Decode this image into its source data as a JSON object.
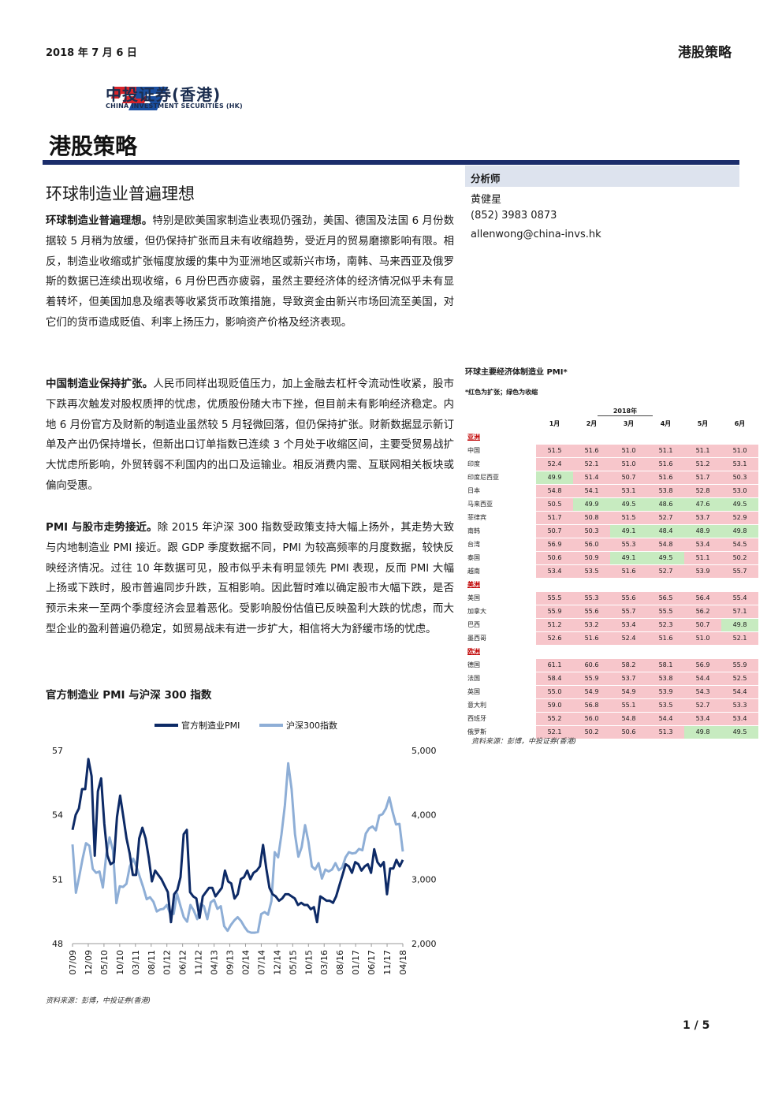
{
  "header": {
    "date": "2018 年 7 月 6 日",
    "section": "港股策略"
  },
  "logo": {
    "cn": "中投证券(香港)",
    "en": "CHINA INVESTMENT SECURITIES (HK)"
  },
  "page_title": "港股策略",
  "headline": "环球制造业普遍理想",
  "paragraphs": [
    {
      "lead": "环球制造业普遍理想。",
      "text": "特别是欧美国家制造业表现仍强劲，美国、德国及法国 6 月份数据较 5 月稍为放缓，但仍保持扩张而且未有收缩趋势，受近月的贸易磨擦影响有限。相反，制造业收缩或扩张幅度放缓的集中为亚洲地区或新兴市场，南韩、马来西亚及俄罗斯的数据已连续出现收缩，6 月份巴西亦疲弱，虽然主要经济体的经济情况似乎未有显着转坏，但美国加息及缩表等收紧货币政策措施，导致资金由新兴市场回流至美国，对它们的货币造成贬值、利率上扬压力，影响资产价格及经济表现。"
    },
    {
      "lead": "中国制造业保持扩张。",
      "text": "人民币同样出现贬值压力，加上金融去杠杆令流动性收紧，股市下跌再次触发对股权质押的忧虑，优质股份随大市下挫，但目前未有影响经济稳定。内地 6 月份官方及财新的制造业虽然较 5 月轻微回落，但仍保持扩张。财新数据显示新订单及产出仍保持增长，但新出口订单指数已连续 3 个月处于收缩区间，主要受贸易战扩大忧虑所影响，外贸转弱不利国内的出口及运输业。相反消费内需、互联网相关板块或偏向受惠。"
    },
    {
      "lead": "PMI 与股市走势接近。",
      "text": "除 2015 年沪深 300 指数受政策支持大幅上扬外，其走势大致与内地制造业 PMI 接近。跟 GDP 季度数据不同，PMI 为较高频率的月度数据，较快反映经济情况。过往 10 年数据可见，股市似乎未有明显领先 PMI 表现，反而 PMI 大幅上扬或下跌时，股市普遍同步升跌，互相影响。因此暂时难以确定股市大幅下跌，是否预示未来一至两个季度经济会显着恶化。受影响股份估值已反映盈利大跌的忧虑，而大型企业的盈利普遍仍稳定，如贸易战未有进一步扩大，相信将大为舒缓市场的忧虑。"
    }
  ],
  "analyst": {
    "label": "分析师",
    "name": "黄健星",
    "phone": "(852) 3983 0873",
    "email": "allenwong@china-invs.hk"
  },
  "chart_data": {
    "type": "line",
    "title": "官方制造业 PMI 与沪深 300 指数",
    "source": "资料来源：彭博，中投证券(香港)",
    "x_ticks": [
      "07/09",
      "12/09",
      "05/10",
      "10/10",
      "03/11",
      "08/11",
      "01/12",
      "06/12",
      "11/12",
      "04/13",
      "09/13",
      "02/14",
      "07/14",
      "12/14",
      "05/15",
      "10/15",
      "03/16",
      "08/16",
      "01/17",
      "06/17",
      "11/17",
      "04/18"
    ],
    "y_left": {
      "ticks": [
        "57",
        "54",
        "51",
        "48"
      ],
      "range": [
        48,
        57
      ]
    },
    "y_right": {
      "ticks": [
        "5,000",
        "4,000",
        "3,000",
        "2,000"
      ],
      "range": [
        2000,
        5000
      ]
    },
    "series": [
      {
        "name": "官方制造业PMI",
        "axis": "left",
        "color": "#0d2a66",
        "values": [
          53.3,
          54.0,
          54.3,
          55.2,
          55.2,
          56.6,
          55.8,
          52.1,
          55.1,
          55.7,
          53.6,
          52.1,
          51.7,
          51.8,
          53.9,
          54.9,
          53.9,
          52.9,
          52.2,
          51.2,
          51.2,
          52.9,
          53.4,
          52.9,
          52.0,
          50.9,
          51.4,
          51.2,
          51.0,
          50.7,
          50.4,
          49.0,
          50.3,
          50.5,
          51.1,
          53.1,
          53.3,
          50.4,
          50.2,
          50.1,
          49.2,
          50.2,
          50.4,
          50.6,
          50.6,
          50.2,
          50.4,
          50.6,
          51.4,
          50.9,
          50.8,
          50.1,
          50.3,
          51.0,
          51.1,
          51.4,
          51.0,
          51.3,
          51.4,
          51.6,
          52.6,
          51.5,
          50.6,
          50.3,
          50.2,
          50.0,
          50.1,
          50.3,
          50.3,
          50.2,
          50.1,
          49.8,
          49.9,
          49.8,
          49.8,
          49.6,
          49.7,
          49.0,
          50.2,
          50.1,
          50.0,
          50.0,
          49.9,
          50.2,
          50.7,
          51.2,
          51.7,
          51.6,
          51.3,
          51.8,
          51.7,
          51.4,
          51.6,
          51.7,
          51.3,
          52.4,
          51.8,
          51.6,
          51.8,
          50.3,
          51.5,
          51.5,
          51.9,
          51.6,
          51.9
        ]
      },
      {
        "name": "沪深300指数",
        "axis": "right",
        "color": "#8eaed6",
        "values": [
          3540,
          2790,
          3050,
          3320,
          3560,
          3520,
          3160,
          3100,
          3120,
          2870,
          3380,
          3650,
          3450,
          2630,
          2890,
          2880,
          2930,
          3200,
          3320,
          3190,
          3030,
          2870,
          2690,
          2720,
          2650,
          2500,
          2530,
          2540,
          2600,
          2460,
          2460,
          2780,
          2590,
          2410,
          2340,
          2600,
          2510,
          2380,
          2620,
          2580,
          2380,
          2640,
          2680,
          2540,
          2580,
          2270,
          2200,
          2290,
          2360,
          2410,
          2350,
          2260,
          2190,
          2170,
          2170,
          2180,
          2460,
          2490,
          2450,
          2660,
          3420,
          3340,
          3700,
          4150,
          4800,
          4400,
          3700,
          3350,
          3500,
          3840,
          3580,
          3200,
          3150,
          3250,
          3010,
          3150,
          3120,
          3150,
          3250,
          3140,
          3180,
          3340,
          3420,
          3400,
          3410,
          3470,
          3450,
          3710,
          3790,
          3820,
          3760,
          3990,
          4010,
          4100,
          4270,
          4040,
          3850,
          3860,
          3430
        ]
      }
    ]
  },
  "pmi_table": {
    "title": "环球主要经济体制造业 PMI*",
    "note": "*红色为扩张；绿色为收缩",
    "year": "2018年",
    "months": [
      "1月",
      "2月",
      "3月",
      "4月",
      "5月",
      "6月"
    ],
    "regions": [
      {
        "name": "亚洲",
        "rows": [
          {
            "country": "中国",
            "values": [
              "51.5",
              "51.6",
              "51.0",
              "51.1",
              "51.1",
              "51.0"
            ]
          },
          {
            "country": "印度",
            "values": [
              "52.4",
              "52.1",
              "51.0",
              "51.6",
              "51.2",
              "53.1"
            ]
          },
          {
            "country": "印度尼西亚",
            "values": [
              "49.9",
              "51.4",
              "50.7",
              "51.6",
              "51.7",
              "50.3"
            ]
          },
          {
            "country": "日本",
            "values": [
              "54.8",
              "54.1",
              "53.1",
              "53.8",
              "52.8",
              "53.0"
            ]
          },
          {
            "country": "马来西亚",
            "values": [
              "50.5",
              "49.9",
              "49.5",
              "48.6",
              "47.6",
              "49.5"
            ]
          },
          {
            "country": "菲律宾",
            "values": [
              "51.7",
              "50.8",
              "51.5",
              "52.7",
              "53.7",
              "52.9"
            ]
          },
          {
            "country": "南韩",
            "values": [
              "50.7",
              "50.3",
              "49.1",
              "48.4",
              "48.9",
              "49.8"
            ]
          },
          {
            "country": "台湾",
            "values": [
              "56.9",
              "56.0",
              "55.3",
              "54.8",
              "53.4",
              "54.5"
            ]
          },
          {
            "country": "泰国",
            "values": [
              "50.6",
              "50.9",
              "49.1",
              "49.5",
              "51.1",
              "50.2"
            ]
          },
          {
            "country": "越南",
            "values": [
              "53.4",
              "53.5",
              "51.6",
              "52.7",
              "53.9",
              "55.7"
            ]
          }
        ]
      },
      {
        "name": "美洲",
        "rows": [
          {
            "country": "美国",
            "values": [
              "55.5",
              "55.3",
              "55.6",
              "56.5",
              "56.4",
              "55.4"
            ]
          },
          {
            "country": "加拿大",
            "values": [
              "55.9",
              "55.6",
              "55.7",
              "55.5",
              "56.2",
              "57.1"
            ]
          },
          {
            "country": "巴西",
            "values": [
              "51.2",
              "53.2",
              "53.4",
              "52.3",
              "50.7",
              "49.8"
            ]
          },
          {
            "country": "墨西哥",
            "values": [
              "52.6",
              "51.6",
              "52.4",
              "51.6",
              "51.0",
              "52.1"
            ]
          }
        ]
      },
      {
        "name": "欧洲",
        "rows": [
          {
            "country": "德国",
            "values": [
              "61.1",
              "60.6",
              "58.2",
              "58.1",
              "56.9",
              "55.9"
            ]
          },
          {
            "country": "法国",
            "values": [
              "58.4",
              "55.9",
              "53.7",
              "53.8",
              "54.4",
              "52.5"
            ]
          },
          {
            "country": "英国",
            "values": [
              "55.0",
              "54.9",
              "54.9",
              "53.9",
              "54.3",
              "54.4"
            ]
          },
          {
            "country": "意大利",
            "values": [
              "59.0",
              "56.8",
              "55.1",
              "53.5",
              "52.7",
              "53.3"
            ]
          },
          {
            "country": "西班牙",
            "values": [
              "55.2",
              "56.0",
              "54.8",
              "54.4",
              "53.4",
              "53.4"
            ]
          },
          {
            "country": "俄罗斯",
            "values": [
              "52.1",
              "50.2",
              "50.6",
              "51.3",
              "49.8",
              "49.5"
            ]
          }
        ]
      }
    ],
    "source": "资料来源：彭博，中投证券(香港)",
    "colors": {
      "expansion": "#f7c6cb",
      "contraction": "#c7ebc0"
    }
  },
  "page_number": "1 / 5"
}
